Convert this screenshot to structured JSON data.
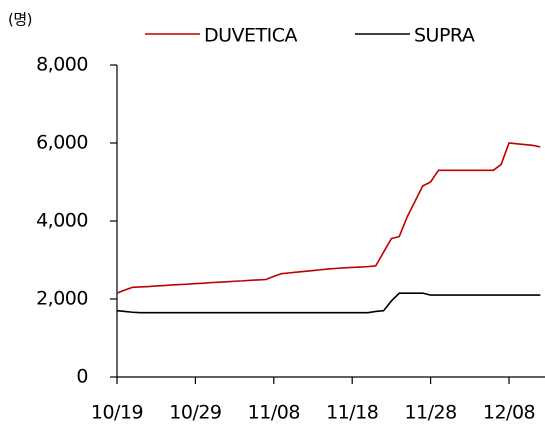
{
  "chart_data": {
    "type": "line",
    "y_unit_label": "(명)",
    "categories": [
      "10/19",
      null,
      null,
      null,
      null,
      null,
      null,
      null,
      null,
      null,
      "10/29",
      null,
      null,
      null,
      null,
      null,
      null,
      null,
      null,
      null,
      "11/08",
      null,
      null,
      null,
      null,
      null,
      null,
      null,
      null,
      null,
      "11/18",
      null,
      null,
      null,
      null,
      null,
      null,
      null,
      null,
      null,
      "11/28",
      null,
      null,
      null,
      null,
      null,
      null,
      null,
      null,
      null,
      "12/08",
      null,
      null,
      null,
      null
    ],
    "series": [
      {
        "name": "DUVETICA",
        "color": "#c00000",
        "values": [
          2150,
          2230,
          2300,
          2310,
          2320,
          2335,
          2345,
          2360,
          2370,
          2380,
          2395,
          2405,
          2420,
          2430,
          2440,
          2455,
          2465,
          2480,
          2490,
          2500,
          2580,
          2650,
          2670,
          2690,
          2710,
          2730,
          2750,
          2770,
          2785,
          2800,
          2810,
          2820,
          2830,
          2850,
          3200,
          3550,
          3600,
          4100,
          4500,
          4900,
          5000,
          5300,
          5300,
          5300,
          5300,
          5300,
          5300,
          5300,
          5300,
          5450,
          6000,
          5980,
          5960,
          5940,
          5900
        ]
      },
      {
        "name": "SUPRA",
        "color": "#000000",
        "values": [
          1700,
          1680,
          1660,
          1650,
          1650,
          1650,
          1650,
          1650,
          1650,
          1650,
          1650,
          1650,
          1650,
          1650,
          1650,
          1650,
          1650,
          1650,
          1650,
          1650,
          1650,
          1650,
          1650,
          1650,
          1650,
          1650,
          1650,
          1650,
          1650,
          1650,
          1650,
          1650,
          1650,
          1680,
          1700,
          1950,
          2150,
          2150,
          2150,
          2150,
          2100,
          2100,
          2100,
          2100,
          2100,
          2100,
          2100,
          2100,
          2100,
          2100,
          2100,
          2100,
          2100,
          2100,
          2100
        ]
      }
    ],
    "ylim": [
      0,
      8000
    ],
    "yticks": [
      0,
      {
        "value": 2000,
        "label": "2,000"
      },
      {
        "value": 4000,
        "label": "4,000"
      },
      {
        "value": 6000,
        "label": "6,000"
      },
      {
        "value": 8000,
        "label": "8,000"
      }
    ],
    "grid": false,
    "legend": "top"
  }
}
